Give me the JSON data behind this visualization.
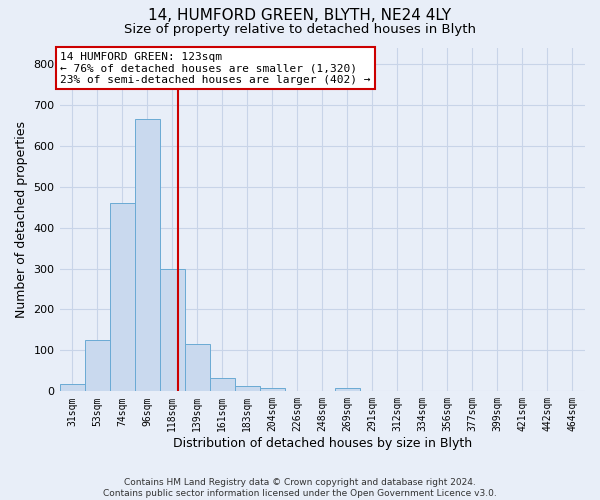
{
  "title1": "14, HUMFORD GREEN, BLYTH, NE24 4LY",
  "title2": "Size of property relative to detached houses in Blyth",
  "xlabel": "Distribution of detached houses by size in Blyth",
  "ylabel": "Number of detached properties",
  "bin_labels": [
    "31sqm",
    "53sqm",
    "74sqm",
    "96sqm",
    "118sqm",
    "139sqm",
    "161sqm",
    "183sqm",
    "204sqm",
    "226sqm",
    "248sqm",
    "269sqm",
    "291sqm",
    "312sqm",
    "334sqm",
    "356sqm",
    "377sqm",
    "399sqm",
    "421sqm",
    "442sqm",
    "464sqm"
  ],
  "bar_heights": [
    17,
    125,
    460,
    665,
    300,
    115,
    33,
    14,
    8,
    0,
    0,
    8,
    0,
    0,
    0,
    0,
    0,
    0,
    0,
    0,
    0
  ],
  "bar_color": "#c9d9ee",
  "bar_edge_color": "#6aaad4",
  "grid_color": "#c8d4e8",
  "background_color": "#e8eef8",
  "annotation_text": "14 HUMFORD GREEN: 123sqm\n← 76% of detached houses are smaller (1,320)\n23% of semi-detached houses are larger (402) →",
  "annotation_box_color": "white",
  "annotation_box_edge_color": "#cc0000",
  "ylim": [
    0,
    840
  ],
  "yticks": [
    0,
    100,
    200,
    300,
    400,
    500,
    600,
    700,
    800
  ],
  "footer": "Contains HM Land Registry data © Crown copyright and database right 2024.\nContains public sector information licensed under the Open Government Licence v3.0.",
  "title_fontsize": 11,
  "subtitle_fontsize": 9.5,
  "axis_label_fontsize": 9,
  "tick_fontsize": 8
}
